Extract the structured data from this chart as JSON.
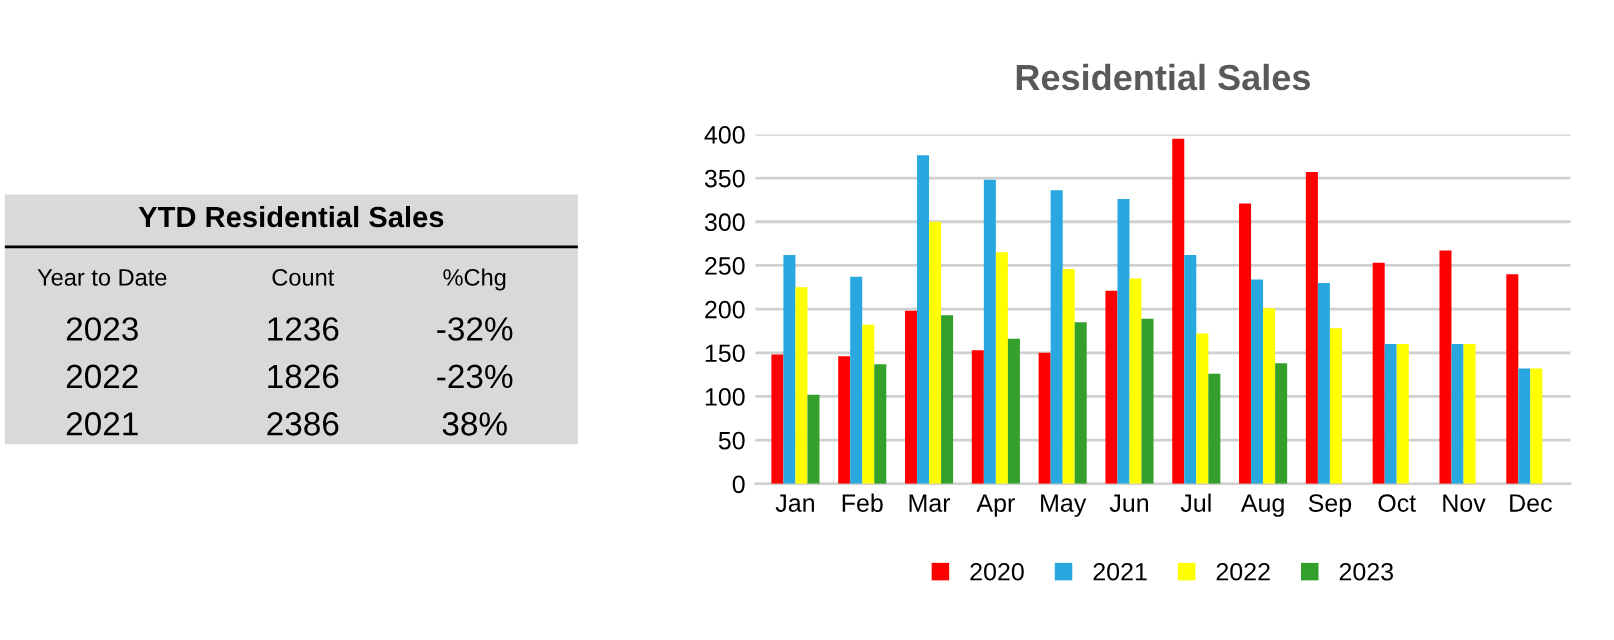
{
  "chart_data": [
    {
      "type": "other",
      "title": "YTD Residential Sales",
      "annotations": [
        "Year to Date",
        "Count",
        "%Chg",
        "2023",
        "1236",
        "-32%",
        "2022",
        "1826",
        "-23%",
        "2021",
        "2386",
        "38%"
      ]
    },
    {
      "type": "bar",
      "title": "Residential Sales",
      "categories": [
        "Jan",
        "Feb",
        "Mar",
        "Apr",
        "May",
        "Jun",
        "Jul",
        "Aug",
        "Sep",
        "Oct",
        "Nov",
        "Dec"
      ],
      "series": [
        {
          "name": "2020",
          "color": "#ff0000",
          "values": [
            148,
            146,
            198,
            153,
            150,
            221,
            395,
            321,
            357,
            253,
            267,
            240
          ]
        },
        {
          "name": "2021",
          "color": "#29a8e0",
          "values": [
            262,
            237,
            376,
            348,
            336,
            326,
            262,
            234,
            230,
            160,
            160,
            132
          ]
        },
        {
          "name": "2022",
          "color": "#ffff00",
          "values": [
            225,
            182,
            300,
            265,
            246,
            235,
            172,
            201,
            178,
            160,
            160,
            132
          ]
        },
        {
          "name": "2023",
          "color": "#33a02c",
          "values": [
            102,
            137,
            193,
            166,
            185,
            189,
            126,
            138,
            0,
            0,
            0,
            0
          ]
        }
      ],
      "ylim": [
        0,
        400
      ],
      "yticks": [
        0,
        50,
        100,
        150,
        200,
        250,
        300,
        350,
        400
      ],
      "grid": "y",
      "legend": "bottom"
    }
  ]
}
